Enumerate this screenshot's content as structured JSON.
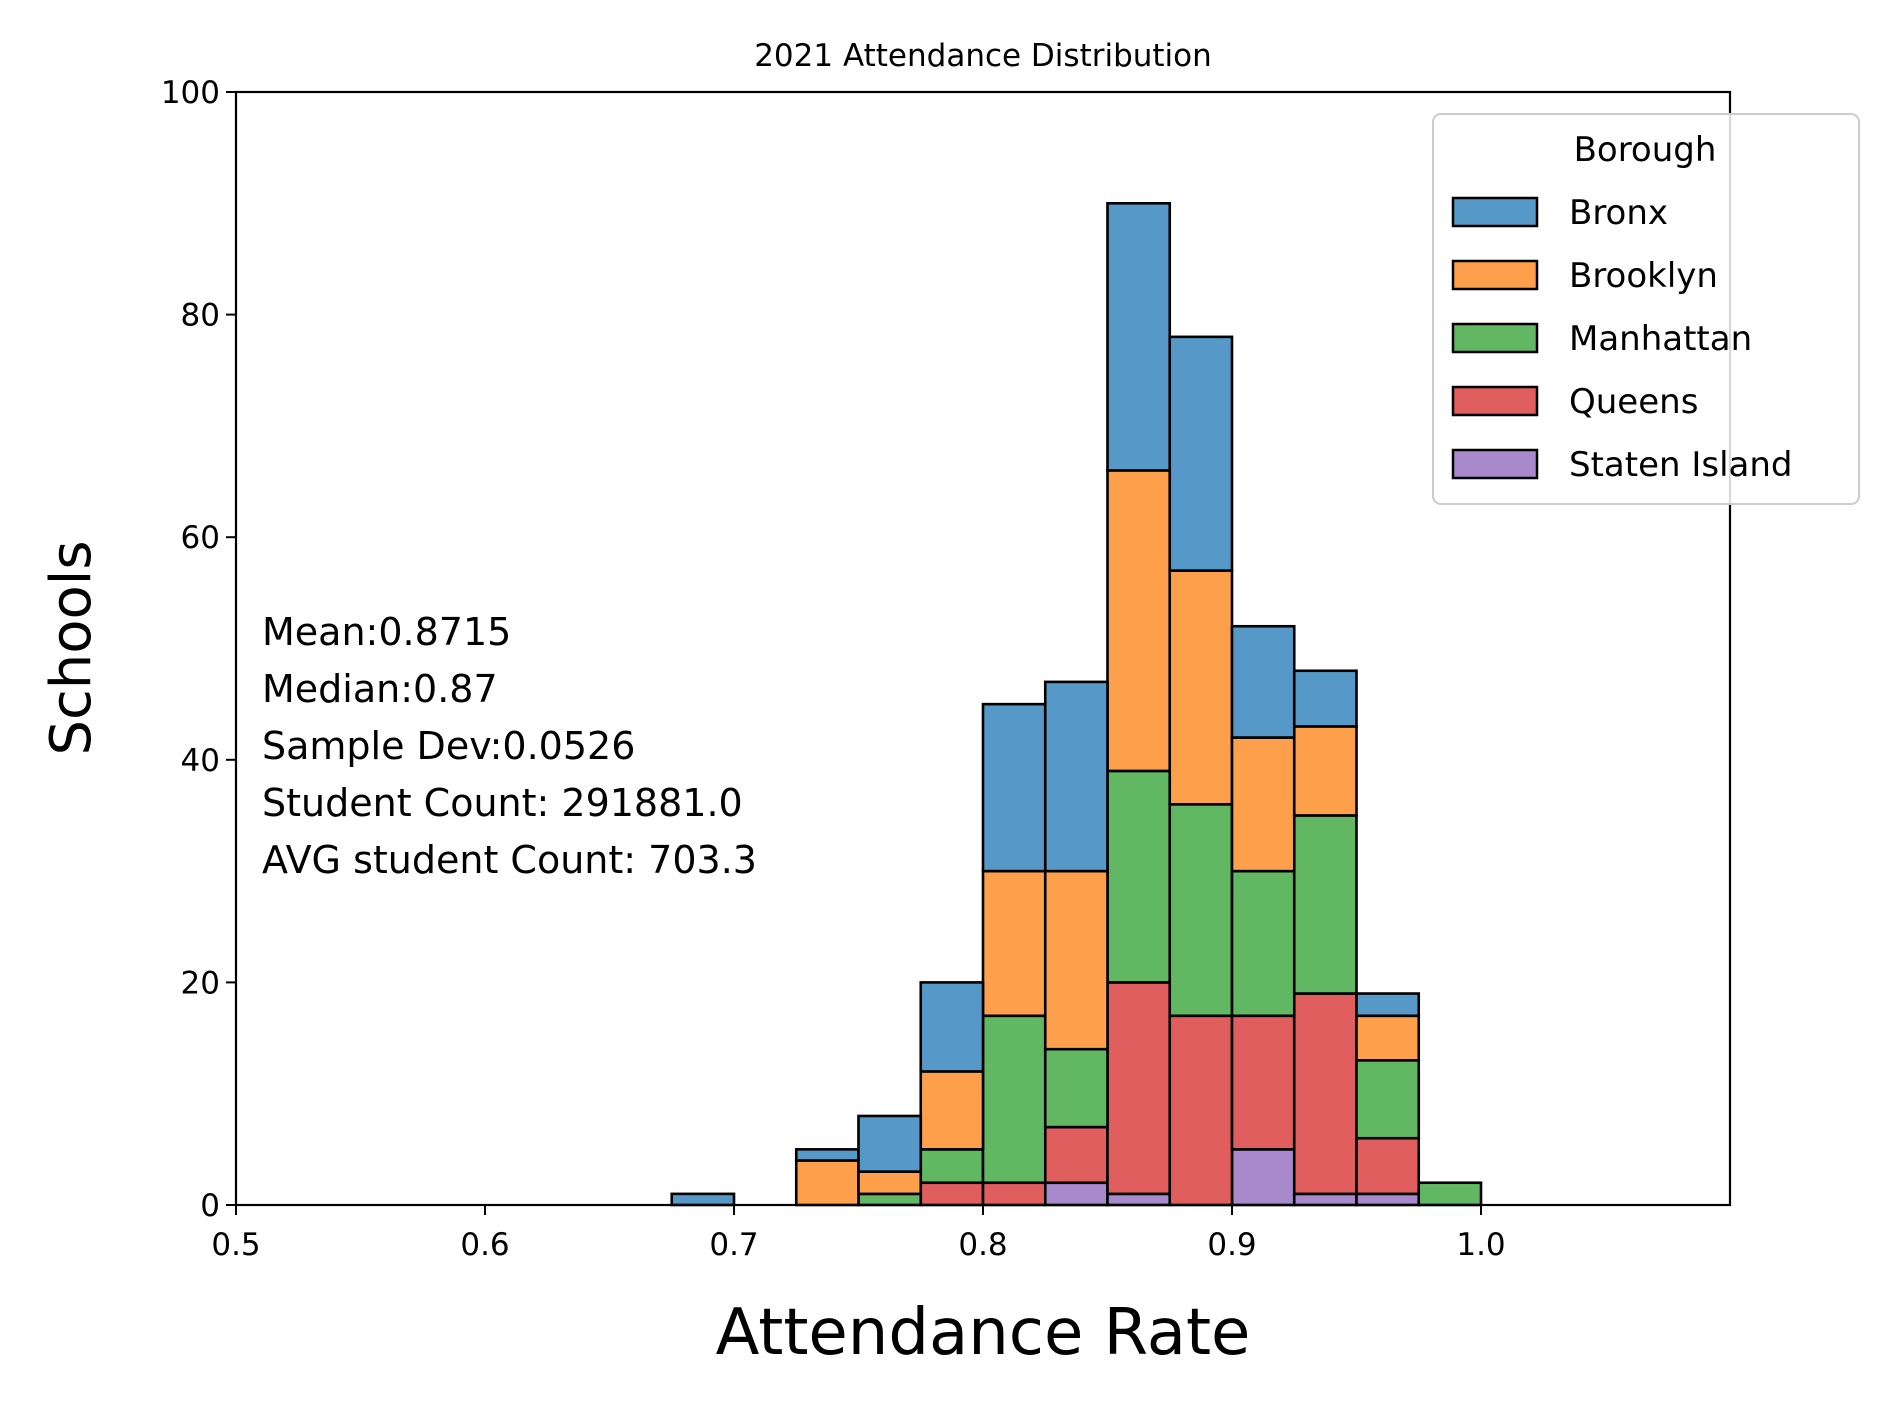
{
  "chart_data": {
    "type": "bar",
    "stacked": true,
    "title": "2021 Attendance Distribution",
    "xlabel": "Attendance Rate",
    "ylabel": "Schools",
    "xlim": [
      0.5,
      1.1
    ],
    "ylim": [
      0,
      100
    ],
    "x_ticks": [
      0.5,
      0.6,
      0.7,
      0.8,
      0.9,
      1.0
    ],
    "x_tick_labels": [
      "0.5",
      "0.6",
      "0.7",
      "0.8",
      "0.9",
      "1.0"
    ],
    "y_ticks": [
      0,
      20,
      40,
      60,
      80,
      100
    ],
    "y_tick_labels": [
      "0",
      "20",
      "40",
      "60",
      "80",
      "100"
    ],
    "grid": false,
    "bin_edges": [
      0.5,
      0.525,
      0.55,
      0.575,
      0.6,
      0.625,
      0.65,
      0.675,
      0.7,
      0.725,
      0.75,
      0.775,
      0.8,
      0.825,
      0.85,
      0.875,
      0.9,
      0.925,
      0.95,
      0.975,
      1.0,
      1.025
    ],
    "legend": {
      "title": "Borough",
      "placement": "upper-right",
      "entries": [
        "Bronx",
        "Brooklyn",
        "Manhattan",
        "Queens",
        "Staten Island"
      ]
    },
    "series": [
      {
        "name": "Staten Island",
        "color": "#a889cc",
        "values": [
          0,
          0,
          0,
          0,
          0,
          0,
          0,
          0,
          0,
          0,
          0,
          0,
          0,
          2,
          1,
          0,
          5,
          1,
          1,
          0,
          0
        ]
      },
      {
        "name": "Queens",
        "color": "#e05e5e",
        "values": [
          0,
          0,
          0,
          0,
          0,
          0,
          0,
          0,
          0,
          0,
          0,
          2,
          2,
          5,
          19,
          17,
          12,
          18,
          5,
          0,
          0
        ]
      },
      {
        "name": "Manhattan",
        "color": "#62b862",
        "values": [
          0,
          0,
          0,
          0,
          0,
          0,
          0,
          0,
          0,
          0,
          1,
          3,
          15,
          7,
          19,
          19,
          13,
          16,
          7,
          2,
          0
        ]
      },
      {
        "name": "Brooklyn",
        "color": "#fea04b",
        "values": [
          0,
          0,
          0,
          0,
          0,
          0,
          0,
          0,
          0,
          4,
          2,
          7,
          13,
          16,
          27,
          21,
          12,
          8,
          4,
          0,
          0
        ]
      },
      {
        "name": "Bronx",
        "color": "#5699c8",
        "values": [
          0,
          0,
          0,
          0,
          0,
          0,
          0,
          1,
          0,
          1,
          5,
          8,
          15,
          17,
          24,
          21,
          10,
          5,
          2,
          0,
          0
        ]
      }
    ],
    "annotation_lines": [
      "Mean:0.8715",
      "Median:0.87",
      "Sample Dev:0.0526",
      "Student Count: 291881.0",
      "AVG student Count: 703.3"
    ]
  }
}
